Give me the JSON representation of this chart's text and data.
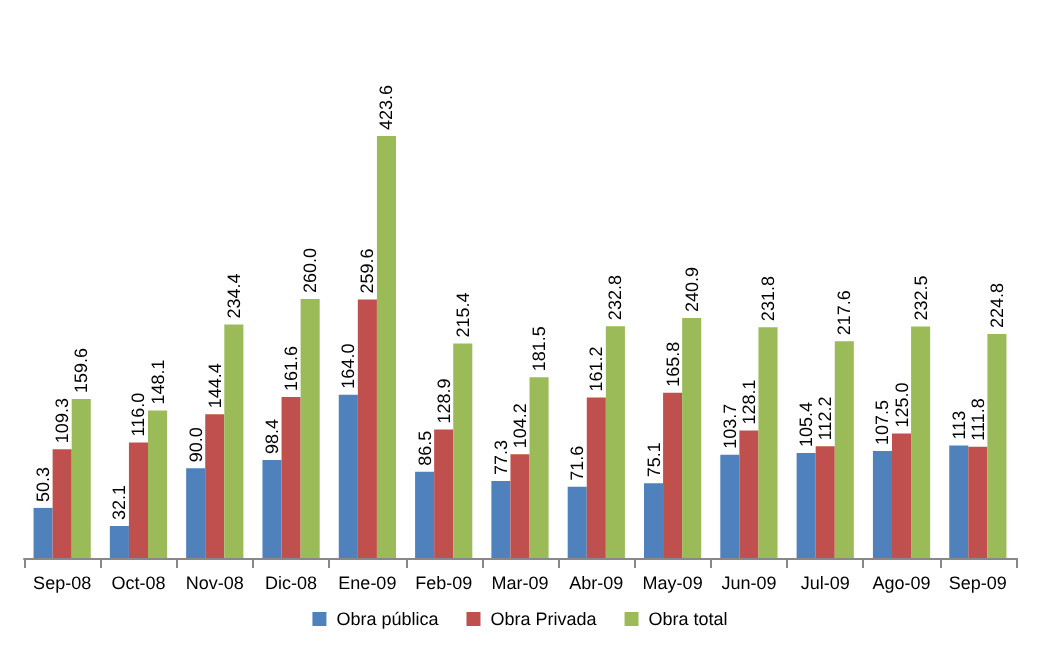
{
  "chart_data": {
    "type": "bar",
    "categories": [
      "Sep-08",
      "Oct-08",
      "Nov-08",
      "Dic-08",
      "Ene-09",
      "Feb-09",
      "Mar-09",
      "Abr-09",
      "May-09",
      "Jun-09",
      "Jul-09",
      "Ago-09",
      "Sep-09"
    ],
    "series": [
      {
        "name": "Obra pública",
        "color": "#4f81bd",
        "values": [
          50.3,
          32.1,
          90.0,
          98.4,
          164.0,
          86.5,
          77.3,
          71.6,
          75.1,
          103.7,
          105.4,
          107.5,
          113
        ],
        "value_labels": [
          "50.3",
          "32.1",
          "90.0",
          "98.4",
          "164.0",
          "86.5",
          "77.3",
          "71.6",
          "75.1",
          "103.7",
          "105.4",
          "107.5",
          "113"
        ]
      },
      {
        "name": "Obra Privada",
        "color": "#c0504d",
        "values": [
          109.3,
          116.0,
          144.4,
          161.6,
          259.6,
          128.9,
          104.2,
          161.2,
          165.8,
          128.1,
          112.2,
          125.0,
          111.8
        ],
        "value_labels": [
          "109.3",
          "116.0",
          "144.4",
          "161.6",
          "259.6",
          "128.9",
          "104.2",
          "161.2",
          "165.8",
          "128.1",
          "112.2",
          "125.0",
          "111.8"
        ]
      },
      {
        "name": "Obra total",
        "color": "#9bbb59",
        "values": [
          159.6,
          148.1,
          234.4,
          260.0,
          423.6,
          215.4,
          181.5,
          232.8,
          240.9,
          231.8,
          217.6,
          232.5,
          224.8
        ],
        "value_labels": [
          "159.6",
          "148.1",
          "234.4",
          "260.0",
          "423.6",
          "215.4",
          "181.5",
          "232.8",
          "240.9",
          "231.8",
          "217.6",
          "232.5",
          "224.8"
        ]
      }
    ],
    "legend": "bottom"
  }
}
